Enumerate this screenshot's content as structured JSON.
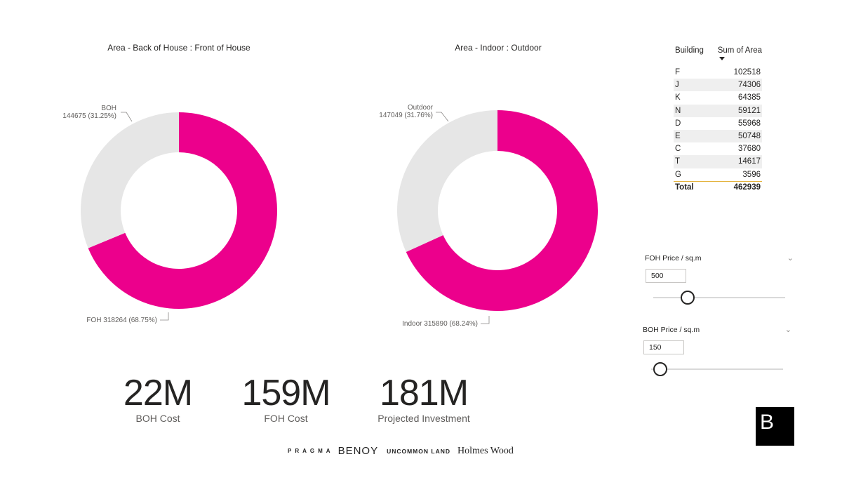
{
  "colors": {
    "accent": "#ec008c",
    "muted": "#e6e6e6",
    "total_border": "#e3b23c"
  },
  "donut_boh_foh": {
    "title": "Area - Back of House : Front of House",
    "slices": [
      {
        "name": "FOH",
        "value": 318264,
        "pct": "68.75%",
        "label": "FOH 318264 (68.75%)",
        "color": "#ec008c"
      },
      {
        "name": "BOH",
        "value": 144675,
        "pct": "31.25%",
        "label_line1": "BOH",
        "label_line2": "144675 (31.25%)",
        "color": "#e6e6e6"
      }
    ]
  },
  "donut_indoor_outdoor": {
    "title": "Area - Indoor : Outdoor",
    "slices": [
      {
        "name": "Indoor",
        "value": 315890,
        "pct": "68.24%",
        "label": "Indoor 315890 (68.24%)",
        "color": "#ec008c"
      },
      {
        "name": "Outdoor",
        "value": 147049,
        "pct": "31.76%",
        "label_line1": "Outdoor",
        "label_line2": "147049 (31.76%)",
        "color": "#e6e6e6"
      }
    ]
  },
  "area_table": {
    "col1": "Building",
    "col2": "Sum of Area",
    "rows": [
      {
        "building": "F",
        "area": "102518"
      },
      {
        "building": "J",
        "area": "74306"
      },
      {
        "building": "K",
        "area": "64385"
      },
      {
        "building": "N",
        "area": "59121"
      },
      {
        "building": "D",
        "area": "55968"
      },
      {
        "building": "E",
        "area": "50748"
      },
      {
        "building": "C",
        "area": "37680"
      },
      {
        "building": "T",
        "area": "14617"
      },
      {
        "building": "G",
        "area": "3596"
      }
    ],
    "total_label": "Total",
    "total_value": "462939"
  },
  "slicer_foh": {
    "title": "FOH Price / sq.m",
    "value": "500",
    "level": 0.26
  },
  "slicer_boh": {
    "title": "BOH Price / sq.m",
    "value": "150",
    "level": 0.07
  },
  "kpis": {
    "boh_cost": {
      "value": "22M",
      "label": "BOH Cost"
    },
    "foh_cost": {
      "value": "159M",
      "label": "FOH Cost"
    },
    "projected": {
      "value": "181M",
      "label": "Projected Investment"
    }
  },
  "footer": {
    "pragma": "PRAGMA",
    "benoy": "BENOY",
    "uncommon": "UNCOMMON LAND",
    "holmes": "Holmes Wood"
  },
  "brand": {
    "letter": "B"
  },
  "chart_data": [
    {
      "type": "pie",
      "title": "Area - Back of House : Front of House",
      "categories": [
        "FOH",
        "BOH"
      ],
      "values": [
        318264,
        144675
      ]
    },
    {
      "type": "pie",
      "title": "Area - Indoor : Outdoor",
      "categories": [
        "Indoor",
        "Outdoor"
      ],
      "values": [
        315890,
        147049
      ]
    },
    {
      "type": "table",
      "columns": [
        "Building",
        "Sum of Area"
      ],
      "rows": [
        [
          "F",
          102518
        ],
        [
          "J",
          74306
        ],
        [
          "K",
          64385
        ],
        [
          "N",
          59121
        ],
        [
          "D",
          55968
        ],
        [
          "E",
          50748
        ],
        [
          "C",
          37680
        ],
        [
          "T",
          14617
        ],
        [
          "G",
          3596
        ]
      ],
      "total": 462939
    }
  ]
}
